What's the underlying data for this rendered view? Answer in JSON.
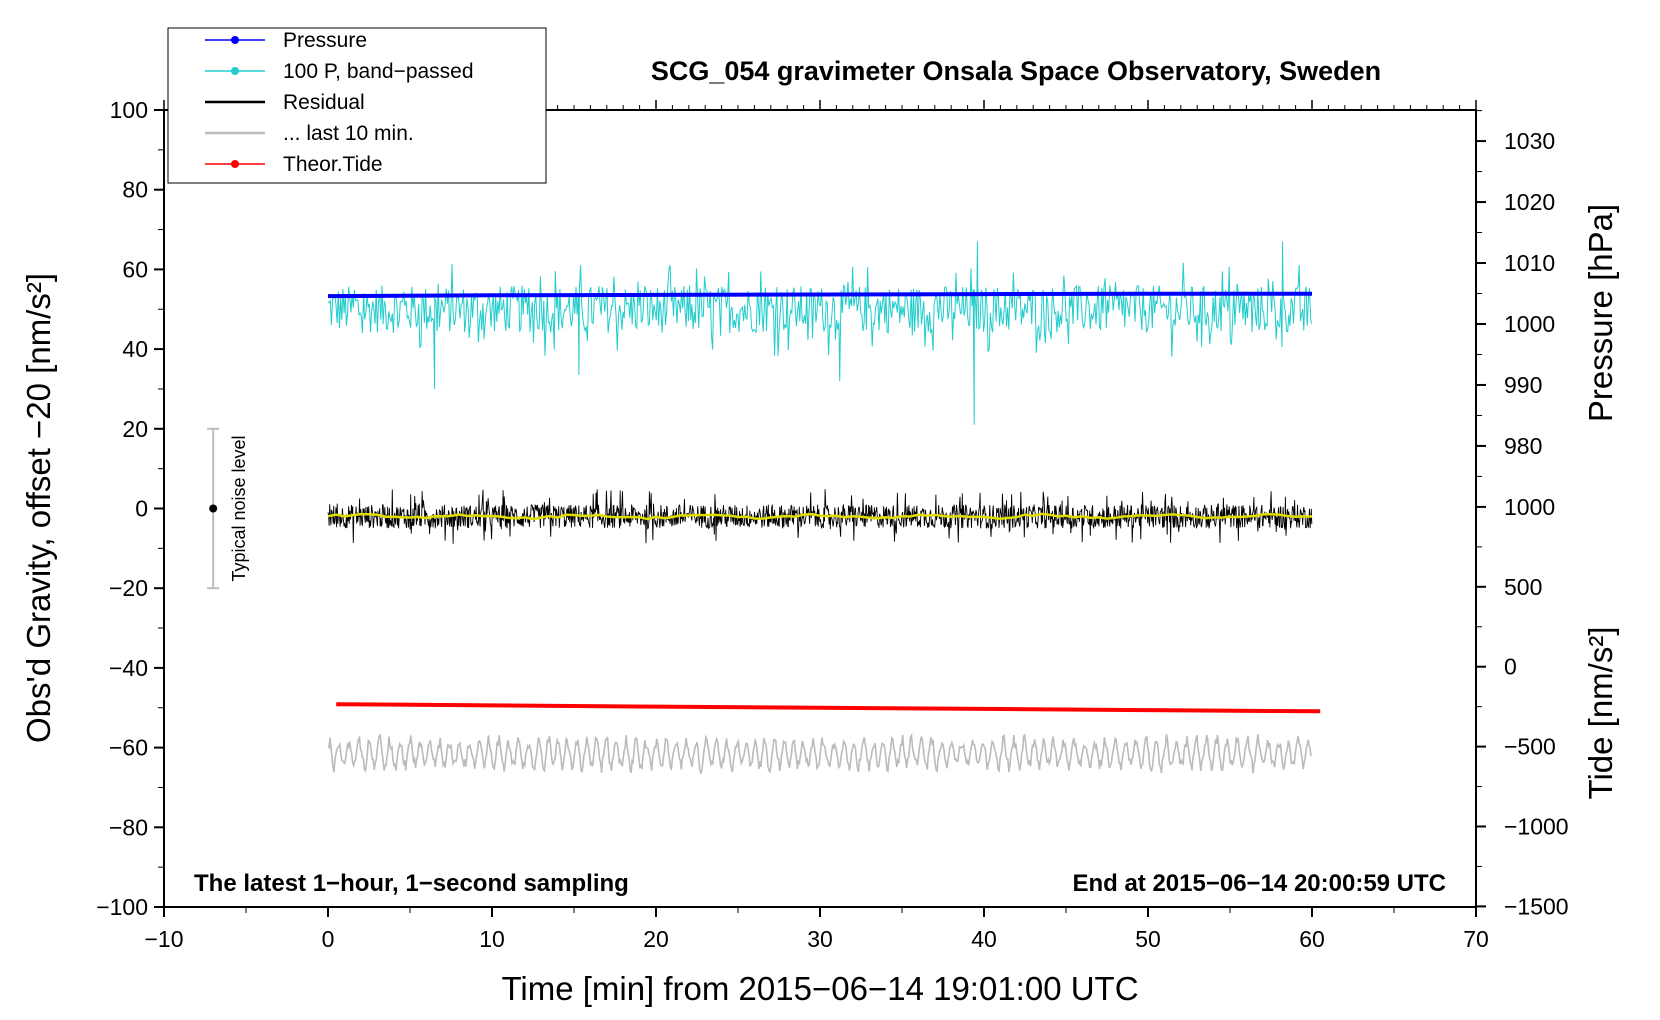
{
  "chart_data": {
    "type": "line",
    "title": "SCG_054 gravimeter Onsala Space Observatory, Sweden",
    "xlabel": "Time [min] from 2015−06−14 19:01:00 UTC",
    "ylabel_left": "Obs'd Gravity, offset −20 [nm/s²]",
    "ylabel_right_pressure": "Pressure [hPa]",
    "ylabel_right_tide": "Tide [nm/s²]",
    "xlim": [
      -10,
      70
    ],
    "ylim_left": [
      -100,
      100
    ],
    "xticks": [
      -10,
      0,
      10,
      20,
      30,
      40,
      50,
      60,
      70
    ],
    "xtick_labels": [
      "−10",
      "0",
      "10",
      "20",
      "30",
      "40",
      "50",
      "60",
      "70"
    ],
    "yticks_left": [
      100,
      80,
      60,
      40,
      20,
      0,
      -20,
      -40,
      -60,
      -80,
      -100
    ],
    "ytick_labels_left": [
      "100",
      "80",
      "60",
      "40",
      "20",
      "0",
      "−20",
      "−40",
      "−60",
      "−80",
      "−100"
    ],
    "pressure_axis": {
      "ticks": [
        1030,
        1020,
        1010,
        1000,
        990,
        980
      ],
      "tick_labels": [
        "1030",
        "1020",
        "1010",
        "1000",
        "990",
        "980"
      ],
      "left_value_per_hpa": 1.53,
      "left_value_at_1000": 46.3
    },
    "tide_axis": {
      "ticks": [
        1000,
        500,
        0,
        -500,
        -1000,
        -1500
      ],
      "tick_labels": [
        "1000",
        "500",
        "0",
        "−500",
        "−1000",
        "−1500"
      ],
      "left_value_per_unit": 0.0401,
      "left_value_at_0": -39.7
    },
    "legend": [
      {
        "label": "Pressure",
        "color": "#0000ff",
        "marker": true
      },
      {
        "label": "100 P, band−passed",
        "color": "#22cccc",
        "marker": true
      },
      {
        "label": "Residual",
        "color": "#000000",
        "marker": false
      },
      {
        "label": "... last 10 min.",
        "color": "#bbbbbb",
        "marker": false
      },
      {
        "label": "Theor.Tide",
        "color": "#ff0000",
        "marker": true
      }
    ],
    "series": [
      {
        "name": "Pressure",
        "color": "#0000ff",
        "x": [
          0,
          10,
          20,
          30,
          40,
          50,
          60
        ],
        "y": [
          53.3,
          53.5,
          53.6,
          53.7,
          53.8,
          53.9,
          53.9
        ]
      },
      {
        "name": "100 P, band−passed",
        "color": "#22cccc",
        "x_start": 0,
        "x_end": 60,
        "center": 50,
        "spread": 6,
        "spikes": [
          {
            "x": 6.5,
            "y": 30
          },
          {
            "x": 15.3,
            "y": 33.5
          },
          {
            "x": 39.4,
            "y": 21
          },
          {
            "x": 39.6,
            "y": 67
          },
          {
            "x": 58.2,
            "y": 67
          },
          {
            "x": 31.2,
            "y": 32
          }
        ]
      },
      {
        "name": "Residual",
        "color": "#000000",
        "x_start": 0,
        "x_end": 60,
        "center": -2,
        "spread": 3,
        "range": [
          -11,
          7
        ]
      },
      {
        "name": "Residual (smoothed)",
        "color": "#dddd00",
        "x_start": 0,
        "x_end": 60,
        "center": -2
      },
      {
        "name": "Theor.Tide",
        "color": "#ff0000",
        "x": [
          0.5,
          10,
          20,
          30,
          40,
          50,
          60.5
        ],
        "y": [
          -49.1,
          -49.4,
          -49.7,
          -50.0,
          -50.3,
          -50.6,
          -50.9
        ]
      },
      {
        "name": "... last 10 min.",
        "color": "#bbbbbb",
        "x_start": 0,
        "x_end": 60,
        "center": -61.5,
        "amplitude_range": [
          -67,
          -55
        ]
      }
    ],
    "noise_bar": {
      "x": -7,
      "y": 0,
      "ymin": -20,
      "ymax": 20,
      "label": "Typical noise level"
    },
    "annotations": {
      "left": "The latest 1−hour, 1−second sampling",
      "right": "End at 2015−06−14 20:00:59 UTC"
    }
  }
}
